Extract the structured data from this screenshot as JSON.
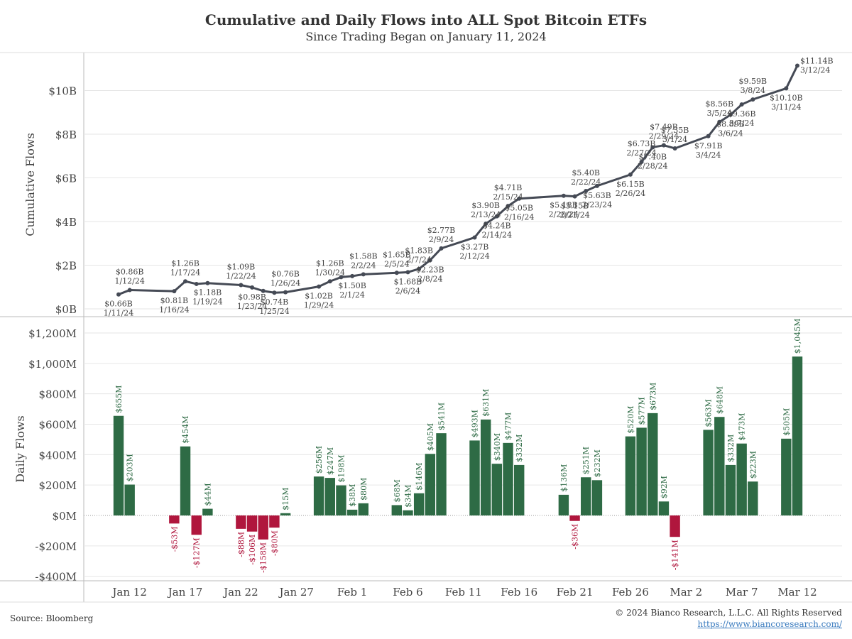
{
  "title": "Cumulative and Daily Flows into ALL Spot Bitcoin ETFs",
  "subtitle": "Since Trading Began on January 11, 2024",
  "source": "Source: Bloomberg",
  "copyright": "© 2024 Bianco Research, L.L.C. All Rights Reserved",
  "url": "https://www.biancoresearch.com/",
  "colors": {
    "line": "#454a55",
    "positive": "#2e6b45",
    "negative": "#b0163d",
    "grid": "#e6e6e6",
    "axis": "#999999"
  },
  "chart_data": [
    {
      "type": "line",
      "title": "",
      "ylabel": "Cumulative Flows",
      "ylim": [
        0,
        11.6
      ],
      "yticks": [
        0,
        2,
        4,
        6,
        8,
        10
      ],
      "ytick_labels": [
        "$0B",
        "$2B",
        "$4B",
        "$6B",
        "$8B",
        "$10B"
      ],
      "series": [
        {
          "name": "Cumulative Flows ($B)",
          "points": [
            {
              "d": "2024-01-11",
              "v": 0.66,
              "value_label": "$0.66B",
              "date_label": "1/11/24"
            },
            {
              "d": "2024-01-12",
              "v": 0.86,
              "value_label": "$0.86B",
              "date_label": "1/12/24"
            },
            {
              "d": "2024-01-16",
              "v": 0.81,
              "value_label": "$0.81B",
              "date_label": "1/16/24"
            },
            {
              "d": "2024-01-17",
              "v": 1.26,
              "value_label": "$1.26B",
              "date_label": "1/17/24"
            },
            {
              "d": "2024-01-18",
              "v": 1.14
            },
            {
              "d": "2024-01-19",
              "v": 1.18,
              "value_label": "$1.18B",
              "date_label": "1/19/24"
            },
            {
              "d": "2024-01-22",
              "v": 1.09,
              "value_label": "$1.09B",
              "date_label": "1/22/24"
            },
            {
              "d": "2024-01-23",
              "v": 0.98,
              "value_label": "$0.98B",
              "date_label": "1/23/24"
            },
            {
              "d": "2024-01-24",
              "v": 0.82
            },
            {
              "d": "2024-01-25",
              "v": 0.74,
              "value_label": "$0.74B",
              "date_label": "1/25/24"
            },
            {
              "d": "2024-01-26",
              "v": 0.76,
              "value_label": "$0.76B",
              "date_label": "1/26/24"
            },
            {
              "d": "2024-01-29",
              "v": 1.02,
              "value_label": "$1.02B",
              "date_label": "1/29/24"
            },
            {
              "d": "2024-01-30",
              "v": 1.26,
              "value_label": "$1.26B",
              "date_label": "1/30/24"
            },
            {
              "d": "2024-01-31",
              "v": 1.45
            },
            {
              "d": "2024-02-01",
              "v": 1.5,
              "value_label": "$1.50B",
              "date_label": "2/1/24"
            },
            {
              "d": "2024-02-02",
              "v": 1.58,
              "value_label": "$1.58B",
              "date_label": "2/2/24"
            },
            {
              "d": "2024-02-05",
              "v": 1.65,
              "value_label": "$1.65B",
              "date_label": "2/5/24"
            },
            {
              "d": "2024-02-06",
              "v": 1.68,
              "value_label": "$1.68B",
              "date_label": "2/6/24"
            },
            {
              "d": "2024-02-07",
              "v": 1.83,
              "value_label": "$1.83B",
              "date_label": "2/7/24"
            },
            {
              "d": "2024-02-08",
              "v": 2.23,
              "value_label": "$2.23B",
              "date_label": "2/8/24"
            },
            {
              "d": "2024-02-09",
              "v": 2.77,
              "value_label": "$2.77B",
              "date_label": "2/9/24"
            },
            {
              "d": "2024-02-12",
              "v": 3.27,
              "value_label": "$3.27B",
              "date_label": "2/12/24"
            },
            {
              "d": "2024-02-13",
              "v": 3.9,
              "value_label": "$3.90B",
              "date_label": "2/13/24"
            },
            {
              "d": "2024-02-14",
              "v": 4.24,
              "value_label": "$4.24B",
              "date_label": "2/14/24"
            },
            {
              "d": "2024-02-15",
              "v": 4.71,
              "value_label": "$4.71B",
              "date_label": "2/15/24"
            },
            {
              "d": "2024-02-16",
              "v": 5.05,
              "value_label": "$5.05B",
              "date_label": "2/16/24"
            },
            {
              "d": "2024-02-20",
              "v": 5.18,
              "value_label": "$5.18B",
              "date_label": "2/20/24"
            },
            {
              "d": "2024-02-21",
              "v": 5.15,
              "value_label": "$5.15B",
              "date_label": "2/21/24"
            },
            {
              "d": "2024-02-22",
              "v": 5.4,
              "value_label": "$5.40B",
              "date_label": "2/22/24"
            },
            {
              "d": "2024-02-23",
              "v": 5.63,
              "value_label": "$5.63B",
              "date_label": "2/23/24"
            },
            {
              "d": "2024-02-26",
              "v": 6.15,
              "value_label": "$6.15B",
              "date_label": "2/26/24"
            },
            {
              "d": "2024-02-27",
              "v": 6.73,
              "value_label": "$6.73B",
              "date_label": "2/27/24"
            },
            {
              "d": "2024-02-28",
              "v": 7.4,
              "value_label": "$7.40B",
              "date_label": "2/28/24"
            },
            {
              "d": "2024-02-29",
              "v": 7.49,
              "value_label": "$7.49B",
              "date_label": "2/29/24"
            },
            {
              "d": "2024-03-01",
              "v": 7.35,
              "value_label": "$7.35B",
              "date_label": "3/1/24"
            },
            {
              "d": "2024-03-04",
              "v": 7.91,
              "value_label": "$7.91B",
              "date_label": "3/4/24"
            },
            {
              "d": "2024-03-05",
              "v": 8.56,
              "value_label": "$8.56B",
              "date_label": "3/5/24"
            },
            {
              "d": "2024-03-06",
              "v": 8.89,
              "value_label": "$8.89B",
              "date_label": "3/6/24"
            },
            {
              "d": "2024-03-07",
              "v": 9.36,
              "value_label": "$9.36B",
              "date_label": "3/7/24"
            },
            {
              "d": "2024-03-08",
              "v": 9.59,
              "value_label": "$9.59B",
              "date_label": "3/8/24"
            },
            {
              "d": "2024-03-11",
              "v": 10.1,
              "value_label": "$10.10B",
              "date_label": "3/11/24"
            },
            {
              "d": "2024-03-12",
              "v": 11.14,
              "value_label": "$11.14B",
              "date_label": "3/12/24"
            }
          ]
        }
      ]
    },
    {
      "type": "bar",
      "title": "",
      "ylabel": "Daily Flows",
      "ylim": [
        -450,
        1270
      ],
      "yticks": [
        -400,
        -200,
        0,
        200,
        400,
        600,
        800,
        1000,
        1200
      ],
      "ytick_labels": [
        "-$400M",
        "-$200M",
        "$0M",
        "$200M",
        "$400M",
        "$600M",
        "$800M",
        "$1,000M",
        "$1,200M"
      ],
      "x_axis_ticks": [
        {
          "d": "2024-01-12",
          "label": "Jan 12"
        },
        {
          "d": "2024-01-17",
          "label": "Jan 17"
        },
        {
          "d": "2024-01-22",
          "label": "Jan 22"
        },
        {
          "d": "2024-01-27",
          "label": "Jan 27"
        },
        {
          "d": "2024-02-01",
          "label": "Feb 1"
        },
        {
          "d": "2024-02-06",
          "label": "Feb 6"
        },
        {
          "d": "2024-02-11",
          "label": "Feb 11"
        },
        {
          "d": "2024-02-16",
          "label": "Feb 16"
        },
        {
          "d": "2024-02-21",
          "label": "Feb 21"
        },
        {
          "d": "2024-02-26",
          "label": "Feb 26"
        },
        {
          "d": "2024-03-02",
          "label": "Mar 2"
        },
        {
          "d": "2024-03-07",
          "label": "Mar 7"
        },
        {
          "d": "2024-03-12",
          "label": "Mar 12"
        }
      ],
      "series": [
        {
          "name": "Daily Flows ($M)",
          "bars": [
            {
              "d": "2024-01-11",
              "v": 655,
              "label": "$655M"
            },
            {
              "d": "2024-01-12",
              "v": 203,
              "label": "$203M"
            },
            {
              "d": "2024-01-16",
              "v": -53,
              "label": "-$53M"
            },
            {
              "d": "2024-01-17",
              "v": 454,
              "label": "$454M"
            },
            {
              "d": "2024-01-18",
              "v": -127,
              "label": "-$127M"
            },
            {
              "d": "2024-01-19",
              "v": 44,
              "label": "$44M"
            },
            {
              "d": "2024-01-22",
              "v": -88,
              "label": "-$88M"
            },
            {
              "d": "2024-01-23",
              "v": -106,
              "label": "-$106M"
            },
            {
              "d": "2024-01-24",
              "v": -158,
              "label": "-$158M"
            },
            {
              "d": "2024-01-25",
              "v": -80,
              "label": "-$80M"
            },
            {
              "d": "2024-01-26",
              "v": 15,
              "label": "$15M"
            },
            {
              "d": "2024-01-29",
              "v": 256,
              "label": "$256M"
            },
            {
              "d": "2024-01-30",
              "v": 247,
              "label": "$247M"
            },
            {
              "d": "2024-01-31",
              "v": 198,
              "label": "$198M"
            },
            {
              "d": "2024-02-01",
              "v": 38,
              "label": "$38M"
            },
            {
              "d": "2024-02-02",
              "v": 80,
              "label": "$80M"
            },
            {
              "d": "2024-02-05",
              "v": 68,
              "label": "$68M"
            },
            {
              "d": "2024-02-06",
              "v": 34,
              "label": "$34M"
            },
            {
              "d": "2024-02-07",
              "v": 146,
              "label": "$146M"
            },
            {
              "d": "2024-02-08",
              "v": 405,
              "label": "$405M"
            },
            {
              "d": "2024-02-09",
              "v": 541,
              "label": "$541M"
            },
            {
              "d": "2024-02-12",
              "v": 493,
              "label": "$493M"
            },
            {
              "d": "2024-02-13",
              "v": 631,
              "label": "$631M"
            },
            {
              "d": "2024-02-14",
              "v": 340,
              "label": "$340M"
            },
            {
              "d": "2024-02-15",
              "v": 477,
              "label": "$477M"
            },
            {
              "d": "2024-02-16",
              "v": 332,
              "label": "$332M"
            },
            {
              "d": "2024-02-20",
              "v": 136,
              "label": "$136M"
            },
            {
              "d": "2024-02-21",
              "v": -36,
              "label": "-$36M"
            },
            {
              "d": "2024-02-22",
              "v": 251,
              "label": "$251M"
            },
            {
              "d": "2024-02-23",
              "v": 232,
              "label": "$232M"
            },
            {
              "d": "2024-02-26",
              "v": 520,
              "label": "$520M"
            },
            {
              "d": "2024-02-27",
              "v": 577,
              "label": "$577M"
            },
            {
              "d": "2024-02-28",
              "v": 673,
              "label": "$673M"
            },
            {
              "d": "2024-02-29",
              "v": 92,
              "label": "$92M"
            },
            {
              "d": "2024-03-01",
              "v": -141,
              "label": "-$141M"
            },
            {
              "d": "2024-03-04",
              "v": 563,
              "label": "$563M"
            },
            {
              "d": "2024-03-05",
              "v": 648,
              "label": "$648M"
            },
            {
              "d": "2024-03-06",
              "v": 332,
              "label": "$332M"
            },
            {
              "d": "2024-03-07",
              "v": 473,
              "label": "$473M"
            },
            {
              "d": "2024-03-08",
              "v": 223,
              "label": "$223M"
            },
            {
              "d": "2024-03-11",
              "v": 505,
              "label": "$505M"
            },
            {
              "d": "2024-03-12",
              "v": 1045,
              "label": "$1,045M"
            }
          ]
        }
      ]
    }
  ]
}
